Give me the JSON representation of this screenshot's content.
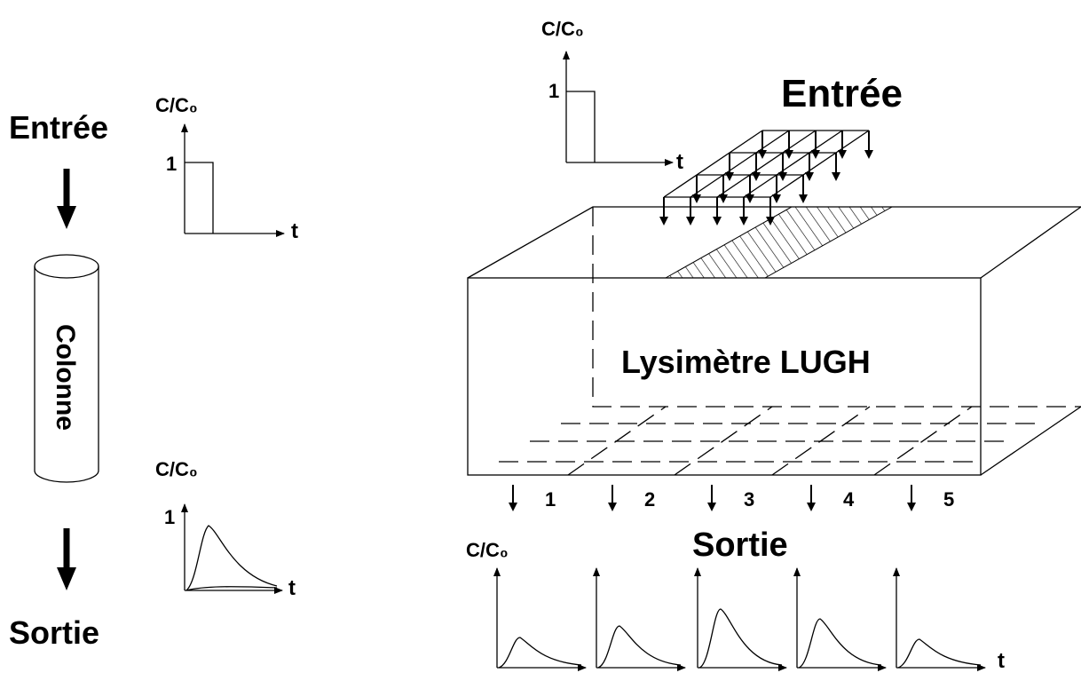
{
  "left": {
    "input_label": "Entrée",
    "output_label": "Sortie",
    "column_label": "Colonne",
    "input_graph": {
      "y_label": "C/C₀",
      "y_tick": "1",
      "x_label": "t"
    },
    "output_graph": {
      "y_label": "C/C₀",
      "y_tick": "1",
      "x_label": "t"
    }
  },
  "right": {
    "input_label": "Entrée",
    "lysimeter_label": "Lysimètre LUGH",
    "output_label": "Sortie",
    "input_graph": {
      "y_label": "C/C₀",
      "y_tick": "1",
      "x_label": "t"
    },
    "outlets": [
      "1",
      "2",
      "3",
      "4",
      "5"
    ],
    "output_graph": {
      "y_label": "C/C₀",
      "x_label": "t"
    }
  }
}
